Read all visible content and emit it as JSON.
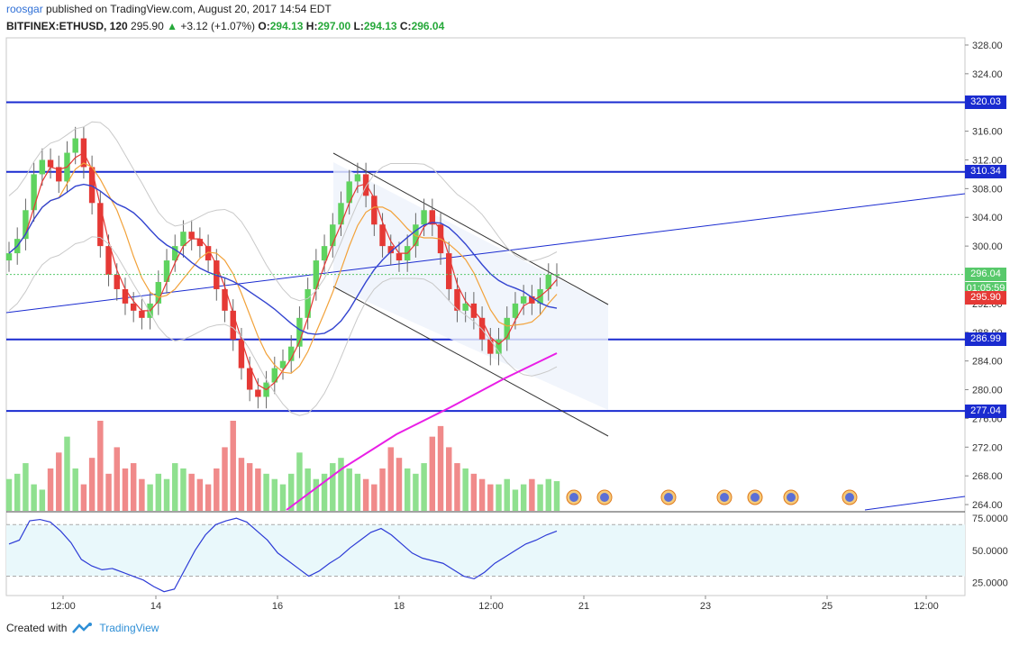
{
  "header": {
    "author": "roosgar",
    "published_text": "published on TradingView.com, August 20, 2017 14:54 EDT",
    "symbol": "BITFINEX:ETHUSD, 120",
    "last": "295.90",
    "change": "+3.12 (+1.07%)",
    "o_label": "O:",
    "o": "294.13",
    "h_label": "H:",
    "h": "297.00",
    "l_label": "L:",
    "l": "294.13",
    "c_label": "C:",
    "c": "296.04"
  },
  "footer": {
    "created_with": "Created with",
    "brand": "TradingView"
  },
  "colors": {
    "up": "#5fd35f",
    "down": "#e53935",
    "level": "#1a2bd0",
    "ma200": "#e91ee6",
    "ma_blue": "#3344d0",
    "ma_red": "#e53935",
    "ma_orange": "#f2a23a",
    "rsi": "#2d3bd6"
  },
  "price_tags": [
    {
      "label": "320.03",
      "color": "#1a2bd0"
    },
    {
      "label": "310.34",
      "color": "#1a2bd0"
    },
    {
      "label": "296.04",
      "color": "#58c96b"
    },
    {
      "label": "01:05:59",
      "color": "#58c96b"
    },
    {
      "label": "295.90",
      "color": "#e53935"
    },
    {
      "label": "286.99",
      "color": "#1a2bd0"
    },
    {
      "label": "277.04",
      "color": "#1a2bd0"
    }
  ],
  "chart_data": {
    "type": "candlestick",
    "x_ticks": [
      "12:00",
      "14",
      "16",
      "18",
      "12:00",
      "21",
      "23",
      "25",
      "12:00"
    ],
    "y_ticks": [
      "328.00",
      "324.00",
      "320.00",
      "316.00",
      "312.00",
      "308.00",
      "304.00",
      "300.00",
      "296.00",
      "292.00",
      "288.00",
      "284.00",
      "280.00",
      "276.00",
      "272.00",
      "268.00",
      "264.00"
    ],
    "ylim": [
      263,
      329
    ],
    "horizontal_levels": [
      320.03,
      310.34,
      286.99,
      277.04
    ],
    "close_series": [
      299,
      301,
      305,
      310,
      312,
      311,
      309,
      313,
      315,
      311,
      306,
      300,
      296,
      294,
      292,
      291,
      290,
      292,
      295,
      298,
      300,
      302,
      301,
      300,
      298,
      294,
      291,
      287,
      283,
      280,
      279,
      281,
      283,
      284,
      286,
      290,
      294,
      298,
      300,
      303,
      306,
      309,
      310,
      307,
      303,
      300,
      299,
      298,
      300,
      303,
      305,
      303,
      299,
      294,
      291,
      292,
      290,
      287,
      285,
      287,
      290,
      292,
      293,
      292,
      294,
      296,
      296
    ],
    "volumes": [
      30,
      35,
      45,
      25,
      20,
      40,
      55,
      70,
      40,
      25,
      50,
      85,
      35,
      60,
      40,
      45,
      30,
      25,
      35,
      30,
      45,
      40,
      35,
      30,
      25,
      40,
      60,
      85,
      50,
      45,
      40,
      35,
      30,
      25,
      35,
      55,
      40,
      30,
      35,
      45,
      50,
      40,
      35,
      30,
      25,
      40,
      60,
      50,
      40,
      35,
      45,
      70,
      80,
      60,
      45,
      40,
      35,
      30,
      25,
      25,
      30,
      20,
      25,
      30,
      25,
      30,
      28
    ],
    "rsi": {
      "ylim": [
        15,
        80
      ],
      "ticks": [
        "75.0000",
        "50.0000",
        "25.0000"
      ],
      "values": [
        55,
        58,
        73,
        74,
        72,
        65,
        56,
        43,
        38,
        35,
        36,
        33,
        30,
        27,
        22,
        18,
        20,
        35,
        50,
        62,
        70,
        73,
        75,
        72,
        65,
        58,
        48,
        42,
        36,
        30,
        34,
        40,
        45,
        52,
        58,
        64,
        67,
        62,
        55,
        48,
        44,
        42,
        40,
        35,
        30,
        28,
        33,
        40,
        45,
        50,
        55,
        58,
        62,
        65
      ]
    }
  }
}
